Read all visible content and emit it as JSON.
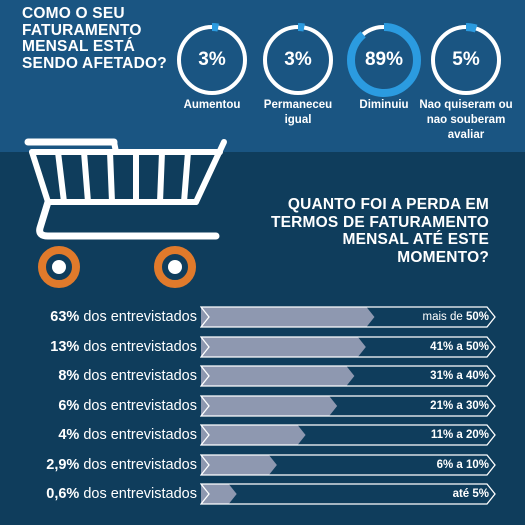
{
  "q1": "COMO O SEU FATURAMENTO MENSAL ESTÁ SENDO AFETADO?",
  "q2": "QUANTO FOI A PERDA EM TERMOS DE FATURAMENTO MENSAL ATÉ ESTE MOMENTO?",
  "colors": {
    "top_bg": "#1a5582",
    "bottom_bg": "#0f3d5c",
    "ring_track": "#ffffff",
    "ring_fill": "#2b9be0",
    "bar_fill": "#8e98b0",
    "bar_border": "#ffffff",
    "wheel": "#e07a2b"
  },
  "chart_data": [
    {
      "type": "donut",
      "categories": [
        "Aumentou",
        "Permaneceu igual",
        "Diminuiu",
        "Nao quiseram ou nao souberam avaliar"
      ],
      "values": [
        3,
        3,
        89,
        5
      ],
      "labels": [
        "3%",
        "3%",
        "89%",
        "5%"
      ]
    },
    {
      "type": "bar",
      "orientation": "horizontal",
      "rows": [
        {
          "pct": "63%",
          "text": "dos entrevistados",
          "range_prefix": "mais de ",
          "range_bold": "50%",
          "value": 63
        },
        {
          "pct": "13%",
          "text": "dos entrevistados",
          "range_prefix": "",
          "range_bold": "41% a 50%",
          "value": 13
        },
        {
          "pct": "8%",
          "text": "dos entrevistados",
          "range_prefix": "",
          "range_bold": "31% a 40%",
          "value": 8
        },
        {
          "pct": "6%",
          "text": "dos entrevistados",
          "range_prefix": "",
          "range_bold": "21% a 30%",
          "value": 6
        },
        {
          "pct": "4%",
          "text": "dos entrevistados",
          "range_prefix": "",
          "range_bold": "11% a 20%",
          "value": 4
        },
        {
          "pct": "2,9%",
          "text": "dos entrevistados",
          "range_prefix": "",
          "range_bold": "6% a 10%",
          "value": 2.9
        },
        {
          "pct": "0,6%",
          "text": "dos entrevistados",
          "range_prefix": "",
          "range_bold": "até 5%",
          "value": 0.6
        }
      ],
      "bar_fill_fraction": [
        0.58,
        0.55,
        0.51,
        0.45,
        0.34,
        0.24,
        0.1
      ]
    }
  ]
}
